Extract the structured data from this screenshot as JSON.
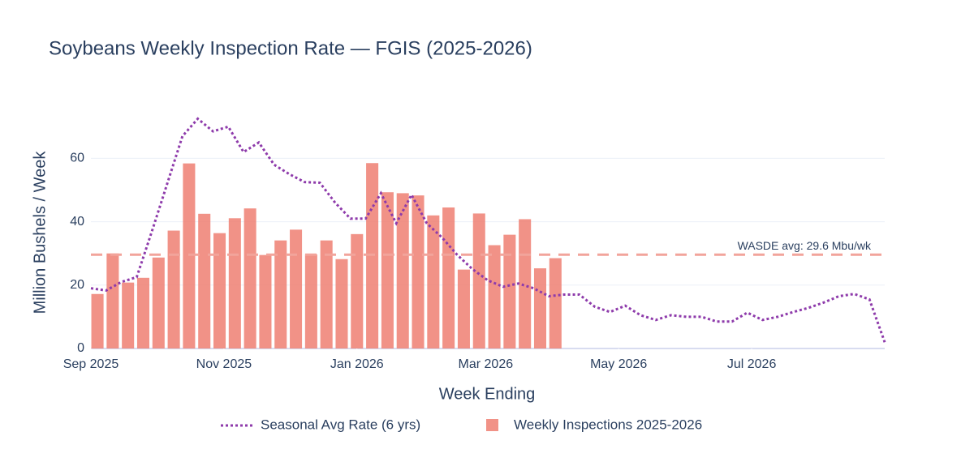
{
  "chart_data": {
    "type": "combo",
    "title": "Soybeans Weekly Inspection Rate — FGIS (2025-2026)",
    "x_label": "Week Ending",
    "y_label": "Million Bushels / Week",
    "xlim": [
      "2025-09-01",
      "2026-08-31"
    ],
    "xticks": [
      {
        "value": "2025-09-01",
        "label": "Sep 2025"
      },
      {
        "value": "2025-11-01",
        "label": "Nov 2025"
      },
      {
        "value": "2026-01-01",
        "label": "Jan 2026"
      },
      {
        "value": "2026-03-01",
        "label": "Mar 2026"
      },
      {
        "value": "2026-05-01",
        "label": "May 2026"
      },
      {
        "value": "2026-07-01",
        "label": "Jul 2026"
      }
    ],
    "ylim": [
      0,
      78
    ],
    "yticks": [
      0,
      20,
      40,
      60
    ],
    "grid": true,
    "legend": "bottom",
    "hlines": [
      {
        "value": 29.6,
        "label": "WASDE avg: 29.6 Mbu/wk",
        "color": "#f2a49b"
      }
    ],
    "series": [
      {
        "name": "Seasonal Avg Rate (6 yrs)",
        "type": "line",
        "color": "#8e3bab",
        "x": [
          "2025-09-01",
          "2025-09-08",
          "2025-09-15",
          "2025-09-22",
          "2025-09-29",
          "2025-10-06",
          "2025-10-13",
          "2025-10-20",
          "2025-10-27",
          "2025-11-03",
          "2025-11-10",
          "2025-11-17",
          "2025-11-24",
          "2025-12-01",
          "2025-12-08",
          "2025-12-15",
          "2025-12-22",
          "2025-12-29",
          "2026-01-05",
          "2026-01-12",
          "2026-01-19",
          "2026-01-26",
          "2026-02-02",
          "2026-02-09",
          "2026-02-16",
          "2026-02-23",
          "2026-03-02",
          "2026-03-09",
          "2026-03-16",
          "2026-03-23",
          "2026-03-30",
          "2026-04-06",
          "2026-04-13",
          "2026-04-20",
          "2026-04-27",
          "2026-05-04",
          "2026-05-11",
          "2026-05-18",
          "2026-05-25",
          "2026-06-01",
          "2026-06-08",
          "2026-06-15",
          "2026-06-22",
          "2026-06-29",
          "2026-07-06",
          "2026-07-13",
          "2026-07-20",
          "2026-07-27",
          "2026-08-03",
          "2026-08-10",
          "2026-08-17",
          "2026-08-24",
          "2026-08-31"
        ],
        "values": [
          19,
          18.3,
          21,
          22.5,
          37,
          52,
          67,
          72.5,
          68.5,
          70,
          62,
          65,
          58,
          55,
          52.5,
          52.3,
          46,
          41,
          41,
          49,
          39.5,
          48.5,
          39.5,
          35,
          29.5,
          25,
          21.5,
          19.5,
          20.5,
          19,
          16.5,
          17,
          17,
          13.2,
          11.5,
          13.5,
          10.5,
          9,
          10.5,
          10,
          10,
          8.5,
          8.5,
          11.3,
          9,
          10,
          11.5,
          12.8,
          14.5,
          16.5,
          17.2,
          15.5,
          2
        ]
      },
      {
        "name": "Weekly Inspections 2025-2026",
        "type": "bar",
        "color": "#ef7f72",
        "x": [
          "2025-09-04",
          "2025-09-11",
          "2025-09-18",
          "2025-09-25",
          "2025-10-02",
          "2025-10-09",
          "2025-10-16",
          "2025-10-23",
          "2025-10-30",
          "2025-11-06",
          "2025-11-13",
          "2025-11-20",
          "2025-11-27",
          "2025-12-04",
          "2025-12-11",
          "2025-12-18",
          "2025-12-25",
          "2026-01-01",
          "2026-01-08",
          "2026-01-15",
          "2026-01-22",
          "2026-01-29",
          "2026-02-05",
          "2026-02-12",
          "2026-02-19",
          "2026-02-26",
          "2026-03-05",
          "2026-03-12",
          "2026-03-19",
          "2026-03-26",
          "2026-04-02"
        ],
        "values": [
          17.2,
          30,
          20.8,
          22.3,
          28.7,
          37.2,
          58.4,
          42.5,
          36.4,
          41.1,
          44.2,
          29.5,
          34.1,
          37.5,
          29.7,
          34.1,
          28.2,
          36.1,
          58.5,
          49.3,
          49,
          48.3,
          42,
          44.5,
          24.9,
          42.6,
          32.6,
          35.9,
          40.8,
          25.3,
          28.5
        ]
      }
    ]
  }
}
